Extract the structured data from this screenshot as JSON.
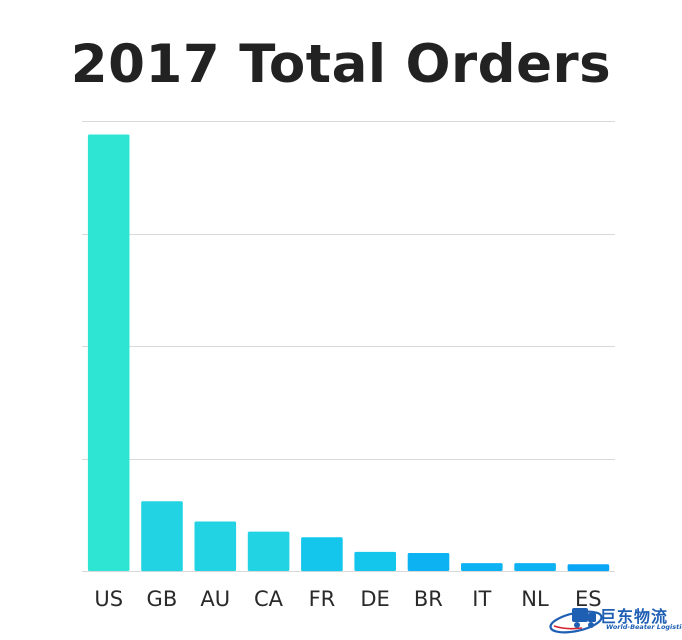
{
  "chart_data": {
    "type": "bar",
    "title": "2017 Total Orders",
    "xlabel": "",
    "ylabel": "",
    "categories": [
      "US",
      "GB",
      "AU",
      "CA",
      "FR",
      "DE",
      "BR",
      "IT",
      "NL",
      "ES"
    ],
    "values": [
      3.88,
      0.62,
      0.44,
      0.35,
      0.3,
      0.17,
      0.16,
      0.07,
      0.07,
      0.06
    ],
    "ylim": [
      0,
      4
    ],
    "grid": true,
    "y_tick_labels_shown": false,
    "legend": "none",
    "colors": {
      "bar_gradient": [
        "#2ee5d4",
        "#22d3e4",
        "#15c6ec",
        "#0db2f3",
        "#0aa6f6"
      ],
      "gridline": "#d9d9d9",
      "title": "#222222",
      "tick_label": "#2a2a2a"
    }
  },
  "watermark": {
    "text_cn": "巨东物流",
    "text_en": "World-Beater Logistics",
    "icon": "truck-logo-icon"
  }
}
